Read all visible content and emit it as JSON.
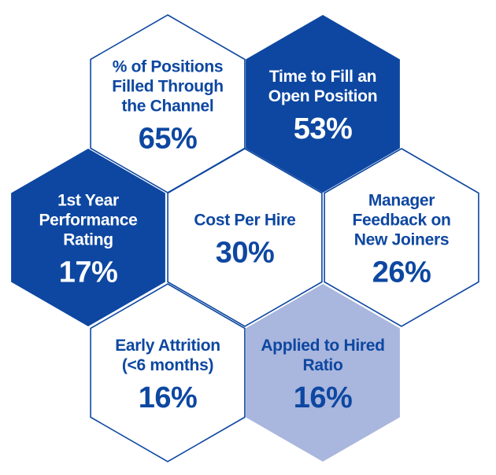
{
  "colors": {
    "dark_blue": "#0d47a1",
    "light_blue": "#a9b6dd",
    "white": "#ffffff",
    "outline": "#0d47a1"
  },
  "metrics": [
    {
      "id": "positions-filled",
      "label_lines": [
        "% of Positions",
        "Filled Through",
        "the Channel"
      ],
      "value": "65%",
      "style": "white"
    },
    {
      "id": "time-to-fill",
      "label_lines": [
        "Time to Fill an",
        "Open Position"
      ],
      "value": "53%",
      "style": "dark"
    },
    {
      "id": "first-year-performance",
      "label_lines": [
        "1st Year",
        "Performance",
        "Rating"
      ],
      "value": "17%",
      "style": "dark"
    },
    {
      "id": "cost-per-hire",
      "label_lines": [
        "Cost Per Hire"
      ],
      "value": "30%",
      "style": "white"
    },
    {
      "id": "manager-feedback",
      "label_lines": [
        "Manager",
        "Feedback on",
        "New Joiners"
      ],
      "value": "26%",
      "style": "white"
    },
    {
      "id": "early-attrition",
      "label_lines": [
        "Early Attrition",
        "(<6 months)"
      ],
      "value": "16%",
      "style": "white"
    },
    {
      "id": "applied-to-hired",
      "label_lines": [
        "Applied to Hired",
        "Ratio"
      ],
      "value": "16%",
      "style": "light"
    }
  ]
}
